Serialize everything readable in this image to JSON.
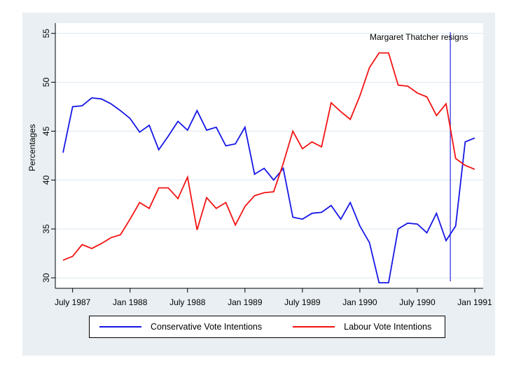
{
  "figure": {
    "background": "#e9eff3",
    "plot_background": "#ffffff",
    "grid_color": "#dce8ee",
    "axis_color": "#000000",
    "text_color": "#000000"
  },
  "chart_data": {
    "type": "line",
    "title": "",
    "xlabel": "",
    "ylabel": "Percentages",
    "ylim": [
      30,
      55
    ],
    "grid": true,
    "legend_position": "bottom",
    "x": [
      "Jun 1987",
      "Jul 1987",
      "Aug 1987",
      "Sep 1987",
      "Oct 1987",
      "Nov 1987",
      "Dec 1987",
      "Jan 1988",
      "Feb 1988",
      "Mar 1988",
      "Apr 1988",
      "May 1988",
      "Jun 1988",
      "Jul 1988",
      "Aug 1988",
      "Sep 1988",
      "Oct 1988",
      "Nov 1988",
      "Dec 1988",
      "Jan 1989",
      "Feb 1989",
      "Mar 1989",
      "Apr 1989",
      "May 1989",
      "Jun 1989",
      "Jul 1989",
      "Aug 1989",
      "Sep 1989",
      "Oct 1989",
      "Nov 1989",
      "Dec 1989",
      "Jan 1990",
      "Feb 1990",
      "Mar 1990",
      "Apr 1990",
      "May 1990",
      "Jun 1990",
      "Jul 1990",
      "Aug 1990",
      "Sep 1990",
      "Oct 1990",
      "Nov 1990",
      "Dec 1990",
      "Jan 1991"
    ],
    "series": [
      {
        "name": "Conservative Vote Intentions",
        "color": "#1616e6",
        "values": [
          42.8,
          47.5,
          47.6,
          48.4,
          48.3,
          47.8,
          47.1,
          46.3,
          44.9,
          45.6,
          43.1,
          44.5,
          46.0,
          45.1,
          47.1,
          45.1,
          45.4,
          43.5,
          43.7,
          45.4,
          40.6,
          41.2,
          40.0,
          41.2,
          36.2,
          36.0,
          36.6,
          36.7,
          37.4,
          36.0,
          37.7,
          35.3,
          33.6,
          29.5,
          29.5,
          35.0,
          35.6,
          35.5,
          34.6,
          36.6,
          33.8,
          35.3,
          43.9,
          44.3
        ]
      },
      {
        "name": "Labour Vote Intentions",
        "color": "#f31212",
        "values": [
          31.8,
          32.2,
          33.4,
          33.0,
          33.5,
          34.1,
          34.4,
          36.0,
          37.7,
          37.1,
          39.2,
          39.2,
          38.1,
          40.3,
          34.9,
          38.2,
          37.1,
          37.7,
          35.4,
          37.3,
          38.4,
          38.7,
          38.8,
          41.7,
          45.0,
          43.2,
          43.9,
          43.4,
          47.9,
          47.0,
          46.2,
          48.6,
          51.5,
          53.0,
          53.0,
          49.7,
          49.6,
          48.9,
          48.5,
          46.6,
          47.8,
          42.2,
          41.5,
          41.1
        ]
      }
    ],
    "y_ticks": [
      {
        "label": "30",
        "value": 30
      },
      {
        "label": "35",
        "value": 35
      },
      {
        "label": "40",
        "value": 40
      },
      {
        "label": "45",
        "value": 45
      },
      {
        "label": "50",
        "value": 50
      },
      {
        "label": "55",
        "value": 55
      }
    ],
    "x_ticks": [
      {
        "label": "July 1987",
        "month_index": 1
      },
      {
        "label": "Jan 1988",
        "month_index": 7
      },
      {
        "label": "July 1988",
        "month_index": 13
      },
      {
        "label": "Jan 1989",
        "month_index": 19
      },
      {
        "label": "July 1989",
        "month_index": 25
      },
      {
        "label": "Jan 1990",
        "month_index": 31
      },
      {
        "label": "July 1990",
        "month_index": 37
      },
      {
        "label": "Jan 1991",
        "month_index": 43
      }
    ],
    "annotation": {
      "text": "Margaret Thatcher resigns",
      "month_index": 40.45,
      "line_color": "#5050e0"
    }
  }
}
